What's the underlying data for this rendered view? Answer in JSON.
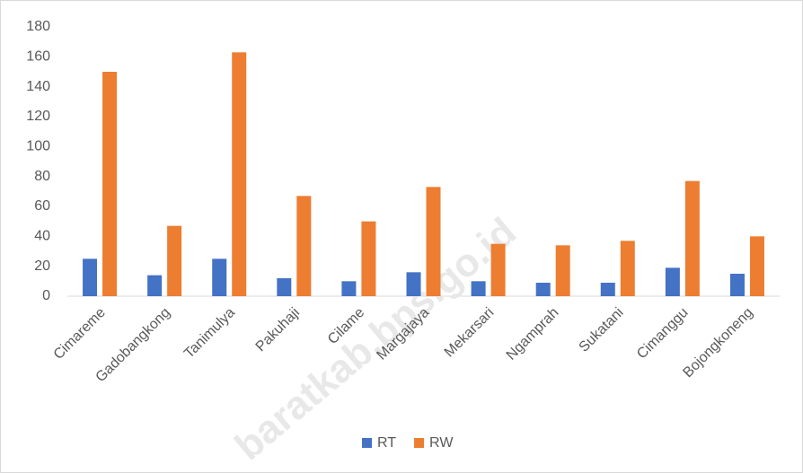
{
  "chart_data": {
    "type": "bar",
    "categories": [
      "Cimareme",
      "Gadobangkong",
      "Tanimulya",
      "Pakuhaji",
      "Cilame",
      "Margajaya",
      "Mekarsari",
      "Ngamprah",
      "Sukatani",
      "Cimanggu",
      "Bojongkoneng"
    ],
    "series": [
      {
        "name": "RT",
        "color": "#4472c4",
        "values": [
          25,
          14,
          25,
          12,
          10,
          16,
          10,
          9,
          9,
          19,
          15
        ]
      },
      {
        "name": "RW",
        "color": "#ed7d31",
        "values": [
          150,
          47,
          163,
          67,
          50,
          73,
          35,
          34,
          37,
          77,
          40
        ]
      }
    ],
    "ylim": [
      0,
      180
    ],
    "yticks": [
      0,
      20,
      40,
      60,
      80,
      100,
      120,
      140,
      160,
      180
    ],
    "grid": false,
    "legend": "bottom",
    "watermark": "baratkab.bps.go.id"
  }
}
